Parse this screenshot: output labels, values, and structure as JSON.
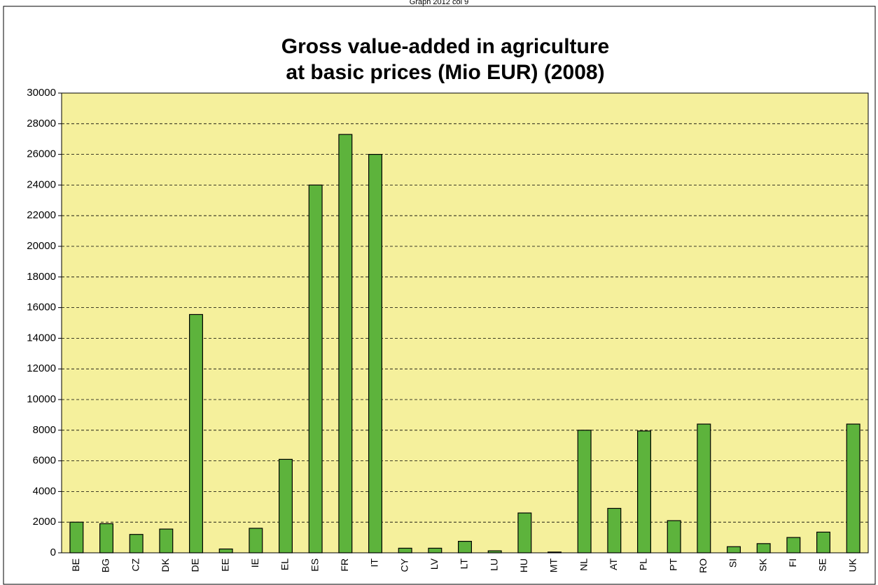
{
  "header": "Graph 2012 col 9",
  "chart_data": {
    "type": "bar",
    "title": [
      "Gross value-added in agriculture",
      "at basic prices (Mio EUR) (2008)"
    ],
    "categories": [
      "BE",
      "BG",
      "CZ",
      "DK",
      "DE",
      "EE",
      "IE",
      "EL",
      "ES",
      "FR",
      "IT",
      "CY",
      "LV",
      "LT",
      "LU",
      "HU",
      "MT",
      "NL",
      "AT",
      "PL",
      "PT",
      "RO",
      "SI",
      "SK",
      "FI",
      "SE",
      "UK"
    ],
    "values": [
      2000,
      1900,
      1200,
      1550,
      15550,
      250,
      1600,
      6100,
      24000,
      27300,
      26000,
      300,
      300,
      750,
      130,
      2600,
      50,
      8000,
      2900,
      7950,
      2100,
      8400,
      400,
      600,
      1000,
      1350,
      8400
    ],
    "color": "#5db33c",
    "ylim": [
      0,
      30000
    ],
    "yticks": [
      0,
      2000,
      4000,
      6000,
      8000,
      10000,
      12000,
      14000,
      16000,
      18000,
      20000,
      22000,
      24000,
      26000,
      28000,
      30000
    ],
    "grid": true
  }
}
